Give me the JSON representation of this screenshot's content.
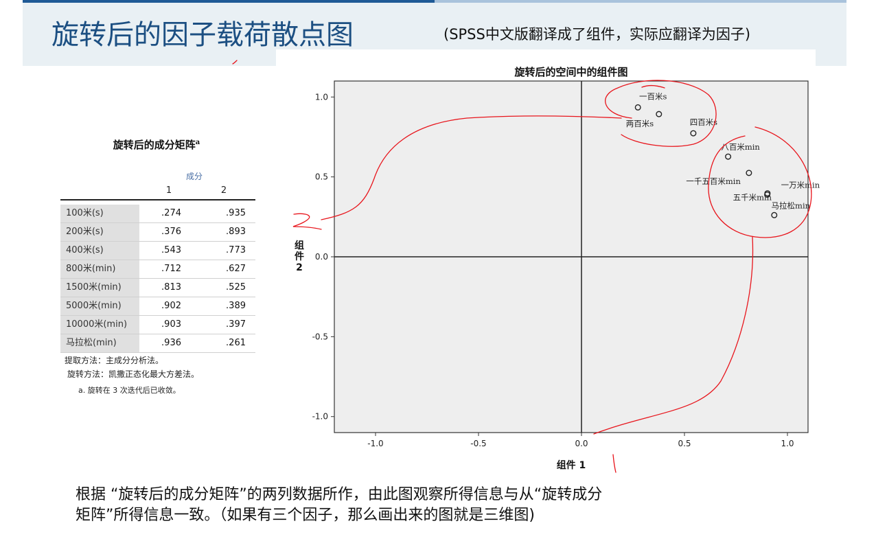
{
  "slide": {
    "title": "旋转后的因子载荷散点图",
    "subtitle": "(SPSS中文版翻译成了组件，实际应翻译为因子)",
    "bottom_line1": "根据 “旋转后的成分矩阵”的两列数据所作，由此图观察所得信息与从“旋转成分",
    "bottom_line2": "矩阵”所得信息一致。（如果有三个因子，那么画出来的图就是三维图)"
  },
  "table": {
    "title": "旋转后的成分矩阵",
    "title_sup": "a",
    "group_header": "成分",
    "columns": [
      "1",
      "2"
    ],
    "rows": [
      {
        "label": "100米(s)",
        "c1": ".274",
        "c2": ".935"
      },
      {
        "label": "200米(s)",
        "c1": ".376",
        "c2": ".893"
      },
      {
        "label": "400米(s)",
        "c1": ".543",
        "c2": ".773"
      },
      {
        "label": "800米(min)",
        "c1": ".712",
        "c2": ".627"
      },
      {
        "label": "1500米(min)",
        "c1": ".813",
        "c2": ".525"
      },
      {
        "label": "5000米(min)",
        "c1": ".902",
        "c2": ".389"
      },
      {
        "label": "10000米(min)",
        "c1": ".903",
        "c2": ".397"
      },
      {
        "label": "马拉松(min)",
        "c1": ".936",
        "c2": ".261"
      }
    ],
    "footnotes": [
      "提取方法：主成分分析法。",
      "旋转方法：凯撒正态化最大方差法。",
      "a. 旋转在 3 次迭代后已收敛。"
    ]
  },
  "chart_data": {
    "type": "scatter",
    "title": "旋转后的空间中的组件图",
    "xlabel": "组件 1",
    "ylabel": "组件 2",
    "xlim": [
      -1.2,
      1.1
    ],
    "ylim": [
      -1.1,
      1.1
    ],
    "xticks": [
      "-1.0",
      "-0.5",
      "0.0",
      "0.5",
      "1.0"
    ],
    "yticks": [
      "1.0",
      "0.5",
      "0.0",
      "-0.5",
      "-1.0"
    ],
    "grid": false,
    "background": "#eeeeee",
    "points": [
      {
        "label": "一百米s",
        "x": 0.274,
        "y": 0.935
      },
      {
        "label": "两百米s",
        "x": 0.376,
        "y": 0.893
      },
      {
        "label": "四百米s",
        "x": 0.543,
        "y": 0.773
      },
      {
        "label": "八百米min",
        "x": 0.712,
        "y": 0.627
      },
      {
        "label": "一千五百米min",
        "x": 0.813,
        "y": 0.525
      },
      {
        "label": "五千米min",
        "x": 0.902,
        "y": 0.389
      },
      {
        "label": "一万米min",
        "x": 0.903,
        "y": 0.397
      },
      {
        "label": "马拉松min",
        "x": 0.936,
        "y": 0.261
      }
    ],
    "annotation_color": "#e8141b"
  }
}
